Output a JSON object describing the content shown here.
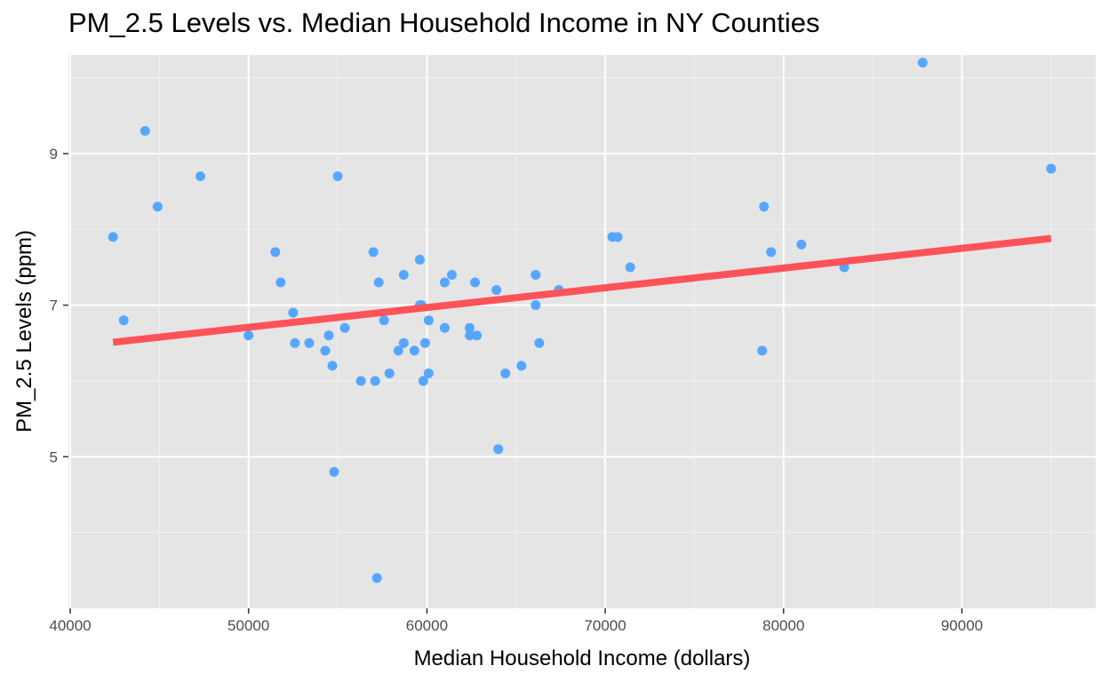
{
  "chart_data": {
    "type": "scatter",
    "title": "PM_2.5 Levels vs. Median Household Income in NY Counties",
    "xlabel": "Median Household Income (dollars)",
    "ylabel": "PM_2.5 Levels (ppm)",
    "xlim": [
      39900,
      97500
    ],
    "ylim": [
      3.0,
      10.3
    ],
    "x_ticks": [
      40000,
      50000,
      60000,
      70000,
      80000,
      90000
    ],
    "x_tick_labels": [
      "40000",
      "50000",
      "60000",
      "70000",
      "80000",
      "90000"
    ],
    "y_ticks": [
      5,
      7,
      9
    ],
    "y_tick_labels": [
      "5",
      "7",
      "9"
    ],
    "grid": true,
    "panel_background": "#E5E5E5",
    "point_color": "#56A6FF",
    "line_color": "#FF5359",
    "trend_line": {
      "x": [
        42400,
        95000
      ],
      "y": [
        6.51,
        7.88
      ]
    },
    "points": [
      {
        "x": 42400,
        "y": 7.9
      },
      {
        "x": 43000,
        "y": 6.8
      },
      {
        "x": 44200,
        "y": 9.3
      },
      {
        "x": 44900,
        "y": 8.3
      },
      {
        "x": 47300,
        "y": 8.7
      },
      {
        "x": 50000,
        "y": 6.6
      },
      {
        "x": 51500,
        "y": 7.7
      },
      {
        "x": 51800,
        "y": 7.3
      },
      {
        "x": 52500,
        "y": 6.9
      },
      {
        "x": 52600,
        "y": 6.5
      },
      {
        "x": 53400,
        "y": 6.5
      },
      {
        "x": 54300,
        "y": 6.4
      },
      {
        "x": 54500,
        "y": 6.6
      },
      {
        "x": 54700,
        "y": 6.2
      },
      {
        "x": 54800,
        "y": 4.8
      },
      {
        "x": 55000,
        "y": 8.7
      },
      {
        "x": 55400,
        "y": 6.7
      },
      {
        "x": 56300,
        "y": 6.0
      },
      {
        "x": 57000,
        "y": 7.7
      },
      {
        "x": 57100,
        "y": 6.0
      },
      {
        "x": 57200,
        "y": 3.4
      },
      {
        "x": 57300,
        "y": 7.3
      },
      {
        "x": 57600,
        "y": 6.8
      },
      {
        "x": 57900,
        "y": 6.1
      },
      {
        "x": 58400,
        "y": 6.4
      },
      {
        "x": 58700,
        "y": 6.5
      },
      {
        "x": 58700,
        "y": 7.4
      },
      {
        "x": 59300,
        "y": 6.4
      },
      {
        "x": 59600,
        "y": 7.6
      },
      {
        "x": 59600,
        "y": 7.0
      },
      {
        "x": 59700,
        "y": 7.0
      },
      {
        "x": 59800,
        "y": 6.0
      },
      {
        "x": 59900,
        "y": 6.5
      },
      {
        "x": 60100,
        "y": 6.8
      },
      {
        "x": 60100,
        "y": 6.1
      },
      {
        "x": 61000,
        "y": 6.7
      },
      {
        "x": 61000,
        "y": 7.3
      },
      {
        "x": 61400,
        "y": 7.4
      },
      {
        "x": 62400,
        "y": 6.7
      },
      {
        "x": 62400,
        "y": 6.6
      },
      {
        "x": 62700,
        "y": 7.3
      },
      {
        "x": 62800,
        "y": 6.6
      },
      {
        "x": 63900,
        "y": 7.2
      },
      {
        "x": 64000,
        "y": 5.1
      },
      {
        "x": 64400,
        "y": 6.1
      },
      {
        "x": 65300,
        "y": 6.2
      },
      {
        "x": 66100,
        "y": 7.4
      },
      {
        "x": 66100,
        "y": 7.0
      },
      {
        "x": 66300,
        "y": 6.5
      },
      {
        "x": 67400,
        "y": 7.2
      },
      {
        "x": 70400,
        "y": 7.9
      },
      {
        "x": 70700,
        "y": 7.9
      },
      {
        "x": 71400,
        "y": 7.5
      },
      {
        "x": 78800,
        "y": 6.4
      },
      {
        "x": 78900,
        "y": 8.3
      },
      {
        "x": 79300,
        "y": 7.7
      },
      {
        "x": 81000,
        "y": 7.8
      },
      {
        "x": 83400,
        "y": 7.5
      },
      {
        "x": 87800,
        "y": 10.2
      },
      {
        "x": 95000,
        "y": 8.8
      }
    ]
  }
}
